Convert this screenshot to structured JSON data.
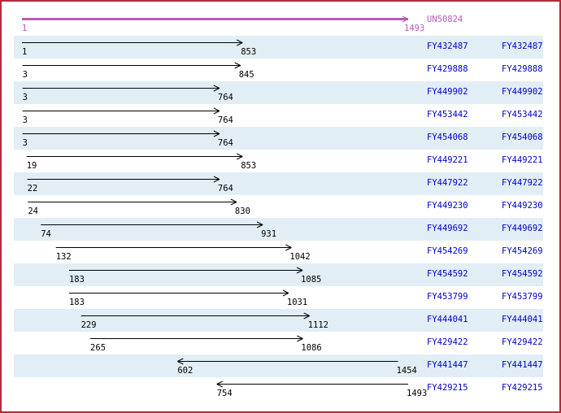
{
  "colors": {
    "border": "#b12b3c",
    "stripe": "#e1eef5",
    "link_blue": "#0000cc",
    "reference_magenta": "#b85ab8",
    "arrow_black": "#000000"
  },
  "chart_data": {
    "type": "bar",
    "orientation": "horizontal",
    "title": "",
    "xlabel": "",
    "ylabel": "",
    "xlim": [
      1,
      1493
    ],
    "grid": false,
    "legend": "none",
    "reference": {
      "name": "UN50824",
      "start": 1,
      "end": 1493,
      "direction": "forward"
    },
    "series": [
      {
        "name": "FY432487",
        "start": 1,
        "end": 853,
        "direction": "forward"
      },
      {
        "name": "FY429888",
        "start": 3,
        "end": 845,
        "direction": "forward"
      },
      {
        "name": "FY449902",
        "start": 3,
        "end": 764,
        "direction": "forward"
      },
      {
        "name": "FY453442",
        "start": 3,
        "end": 764,
        "direction": "forward"
      },
      {
        "name": "FY454068",
        "start": 3,
        "end": 764,
        "direction": "forward"
      },
      {
        "name": "FY449221",
        "start": 19,
        "end": 853,
        "direction": "forward"
      },
      {
        "name": "FY447922",
        "start": 22,
        "end": 764,
        "direction": "forward"
      },
      {
        "name": "FY449230",
        "start": 24,
        "end": 830,
        "direction": "forward"
      },
      {
        "name": "FY449692",
        "start": 74,
        "end": 931,
        "direction": "forward"
      },
      {
        "name": "FY454269",
        "start": 132,
        "end": 1042,
        "direction": "forward"
      },
      {
        "name": "FY454592",
        "start": 183,
        "end": 1085,
        "direction": "forward"
      },
      {
        "name": "FY453799",
        "start": 183,
        "end": 1031,
        "direction": "forward"
      },
      {
        "name": "FY444041",
        "start": 229,
        "end": 1112,
        "direction": "forward"
      },
      {
        "name": "FY429422",
        "start": 265,
        "end": 1086,
        "direction": "forward"
      },
      {
        "name": "FY441447",
        "start": 602,
        "end": 1454,
        "direction": "reverse"
      },
      {
        "name": "FY429215",
        "start": 754,
        "end": 1493,
        "direction": "reverse"
      }
    ]
  }
}
